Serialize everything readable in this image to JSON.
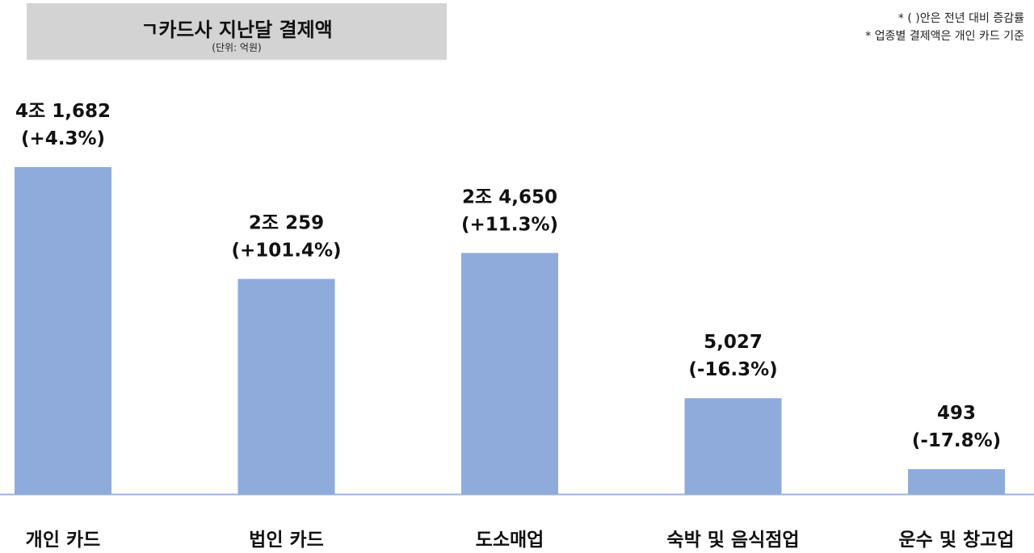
{
  "header": {
    "title": "ㄱ카드사 지난달 결제액",
    "unit": "(단위: 억원)"
  },
  "notes": [
    "* (  )안은 전년 대비 증감률",
    "* 업종별 결제액은 개인 카드 기준"
  ],
  "colors": {
    "bar": "#8eabdc",
    "axis": "#9bb3e0",
    "title_bg": "#d3d3d3"
  },
  "chart_data": {
    "type": "bar",
    "title": "ㄱ카드사 지난달 결제액",
    "unit": "억원",
    "categories": [
      "개인 카드",
      "법인 카드",
      "도소매업",
      "숙박 및 음식점업",
      "운수 및 창고업"
    ],
    "values": [
      41682,
      20259,
      24650,
      5027,
      493
    ],
    "value_labels": [
      "4조 1,682",
      "2조 259",
      "2조 4,650",
      "5,027",
      "493"
    ],
    "change_labels": [
      "(+4.3%)",
      "(+101.4%)",
      "(+11.3%)",
      "(-16.3%)",
      "(-17.8%)"
    ],
    "grid": false,
    "legend": "none"
  }
}
